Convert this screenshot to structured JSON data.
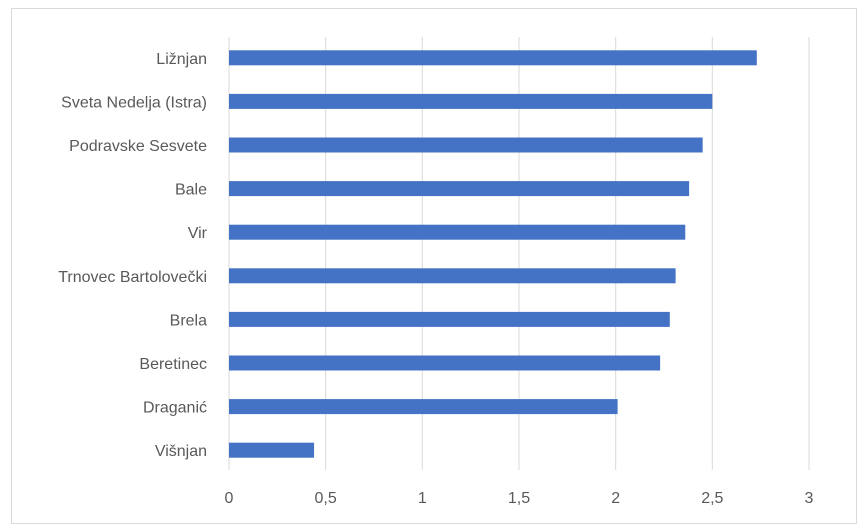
{
  "chart_data": {
    "type": "bar",
    "orientation": "horizontal",
    "title": "",
    "xlabel": "",
    "ylabel": "",
    "categories": [
      "Ližnjan",
      "Sveta Nedelja (Istra)",
      "Podravske Sesvete",
      "Bale",
      "Vir",
      "Trnovec Bartolovečki",
      "Brela",
      "Beretinec",
      "Draganić",
      "Višnjan"
    ],
    "values": [
      2.73,
      2.5,
      2.45,
      2.38,
      2.36,
      2.31,
      2.28,
      2.23,
      2.01,
      0.44
    ],
    "xlim": [
      0,
      3
    ],
    "x_ticks": [
      0,
      0.5,
      1,
      1.5,
      2,
      2.5,
      3
    ],
    "x_tick_labels": [
      "0",
      "0,5",
      "1",
      "1,5",
      "2",
      "2,5",
      "3"
    ],
    "grid": "vertical",
    "legend": "none",
    "bar_color": "#4472c4",
    "grid_color": "#d9d9d9"
  }
}
